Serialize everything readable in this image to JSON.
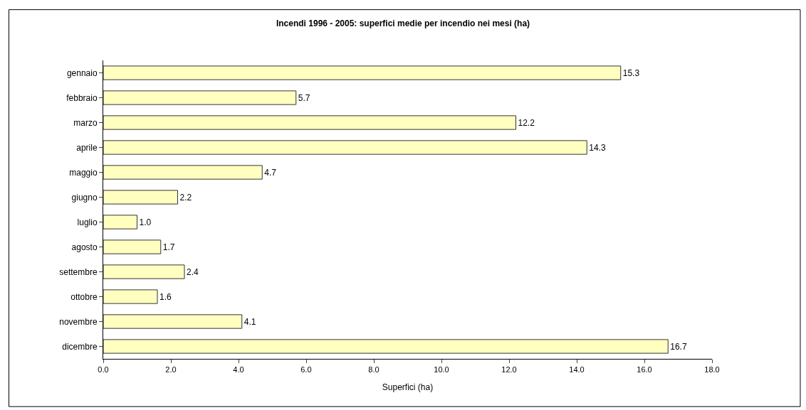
{
  "chart_data": {
    "type": "bar",
    "orientation": "horizontal",
    "title": "Incendi 1996 - 2005: superfici medie per incendio nei mesi (ha)",
    "xlabel": "Superfici (ha)",
    "categories": [
      "gennaio",
      "febbraio",
      "marzo",
      "aprile",
      "maggio",
      "giugno",
      "luglio",
      "agosto",
      "settembre",
      "ottobre",
      "novembre",
      "dicembre"
    ],
    "values": [
      15.3,
      5.7,
      12.2,
      14.3,
      4.7,
      2.2,
      1.0,
      1.7,
      2.4,
      1.6,
      4.1,
      16.7
    ],
    "value_labels": [
      "15.3",
      "5.7",
      "12.2",
      "14.3",
      "4.7",
      "2.2",
      "1.0",
      "1.7",
      "2.4",
      "1.6",
      "4.1",
      "16.7"
    ],
    "color": "#ffffc0",
    "xlim": [
      0,
      18
    ],
    "xticks": [
      {
        "value": 0,
        "label": "0.0"
      },
      {
        "value": 2,
        "label": "2.0"
      },
      {
        "value": 4,
        "label": "4.0"
      },
      {
        "value": 6,
        "label": "6.0"
      },
      {
        "value": 8,
        "label": "8.0"
      },
      {
        "value": 10,
        "label": "10.0"
      },
      {
        "value": 12,
        "label": "12.0"
      },
      {
        "value": 14,
        "label": "14.0"
      },
      {
        "value": 16,
        "label": "16.0"
      },
      {
        "value": 18,
        "label": "18.0"
      }
    ],
    "grid": false
  }
}
